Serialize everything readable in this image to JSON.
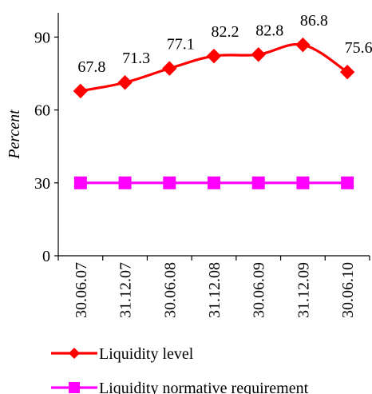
{
  "chart_data": {
    "type": "line",
    "categories": [
      "30.06.07",
      "31.12.07",
      "30.06.08",
      "31.12.08",
      "30.06.09",
      "31.12.09",
      "30.06.10"
    ],
    "series": [
      {
        "name": "Liquidity level",
        "values": [
          67.8,
          71.3,
          77.1,
          82.2,
          82.8,
          86.8,
          75.6
        ],
        "color": "#ff0000",
        "marker": "diamond",
        "data_labels": true
      },
      {
        "name": "Liquidity normative requirement",
        "values": [
          30,
          30,
          30,
          30,
          30,
          30,
          30
        ],
        "color": "#ff00ff",
        "marker": "square",
        "data_labels": false
      }
    ],
    "ylabel": "Percent",
    "xlabel": "",
    "ylim": [
      0,
      100
    ],
    "yticks": [
      0,
      30,
      60,
      90
    ],
    "grid": false,
    "legend_position": "bottom"
  }
}
